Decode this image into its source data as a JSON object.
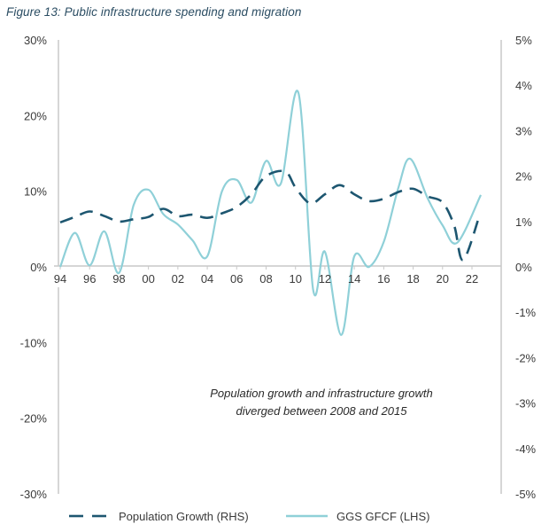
{
  "chart_data": {
    "type": "line",
    "title": "Figure 13: Public infrastructure spending and migration",
    "xlabel": "",
    "ylabel_left": "",
    "ylabel_right": "",
    "x_ticks": [
      "94",
      "96",
      "98",
      "00",
      "02",
      "04",
      "06",
      "08",
      "10",
      "12",
      "14",
      "16",
      "18",
      "20",
      "22"
    ],
    "x_range": [
      1994,
      2023
    ],
    "y_left": {
      "range": [
        -30,
        30
      ],
      "ticks": [
        30,
        20,
        10,
        0,
        -10,
        -20,
        -30
      ],
      "tick_labels": [
        "30%",
        "20%",
        "10%",
        "0%",
        "-10%",
        "-20%",
        "-30%"
      ]
    },
    "y_right": {
      "range": [
        -5,
        5
      ],
      "ticks": [
        5,
        4,
        3,
        2,
        1,
        0,
        -1,
        -2,
        -3,
        -4,
        -5
      ],
      "tick_labels": [
        "5%",
        "4%",
        "3%",
        "2%",
        "1%",
        "0%",
        "-1%",
        "-2%",
        "-3%",
        "-4%",
        "-5%"
      ]
    },
    "grid": false,
    "legend_position": "bottom",
    "annotation": [
      "Population growth and infrastructure growth",
      "diverged between 2008 and 2015"
    ],
    "series": [
      {
        "name": "Population Growth (RHS)",
        "axis": "right",
        "style": "dashed",
        "color": "#1d5670",
        "x": [
          1994,
          1995,
          1996,
          1997,
          1998,
          1999,
          2000,
          2001,
          2002,
          2003,
          2004,
          2005,
          2006,
          2007,
          2008,
          2009.3,
          2010,
          2011,
          2012,
          2013,
          2014,
          2015,
          2016,
          2017,
          2018,
          2019,
          2020,
          2020.8,
          2021.4,
          2022.5
        ],
        "values": [
          0.98,
          1.1,
          1.22,
          1.12,
          1.0,
          1.05,
          1.1,
          1.28,
          1.12,
          1.15,
          1.08,
          1.18,
          1.32,
          1.6,
          2.0,
          2.1,
          1.75,
          1.4,
          1.6,
          1.8,
          1.6,
          1.45,
          1.5,
          1.65,
          1.72,
          1.55,
          1.42,
          0.9,
          0.15,
          1.12
        ]
      },
      {
        "name": "GGS GFCF (LHS)",
        "axis": "left",
        "style": "solid",
        "color": "#8fd0d8",
        "x": [
          1994,
          1995,
          1996,
          1997,
          1998,
          1999,
          2000,
          2001,
          2002,
          2003,
          2004,
          2005,
          2006,
          2007,
          2008,
          2009,
          2010.2,
          2011.2,
          2012,
          2013.1,
          2014,
          2015,
          2016,
          2017,
          2017.8,
          2019,
          2020,
          2021,
          2022.6
        ],
        "values": [
          0.0,
          4.5,
          0.2,
          4.7,
          -0.8,
          8.2,
          10.2,
          7.0,
          5.6,
          3.5,
          1.4,
          10.0,
          11.5,
          8.5,
          14.0,
          11.0,
          23.0,
          -3.0,
          2.0,
          -9.0,
          1.4,
          0.0,
          3.3,
          10.5,
          14.3,
          9.0,
          5.5,
          3.2,
          9.5
        ]
      }
    ]
  },
  "legend": {
    "population_label": "Population Growth (RHS)",
    "gfcf_label": "GGS GFCF (LHS)"
  }
}
